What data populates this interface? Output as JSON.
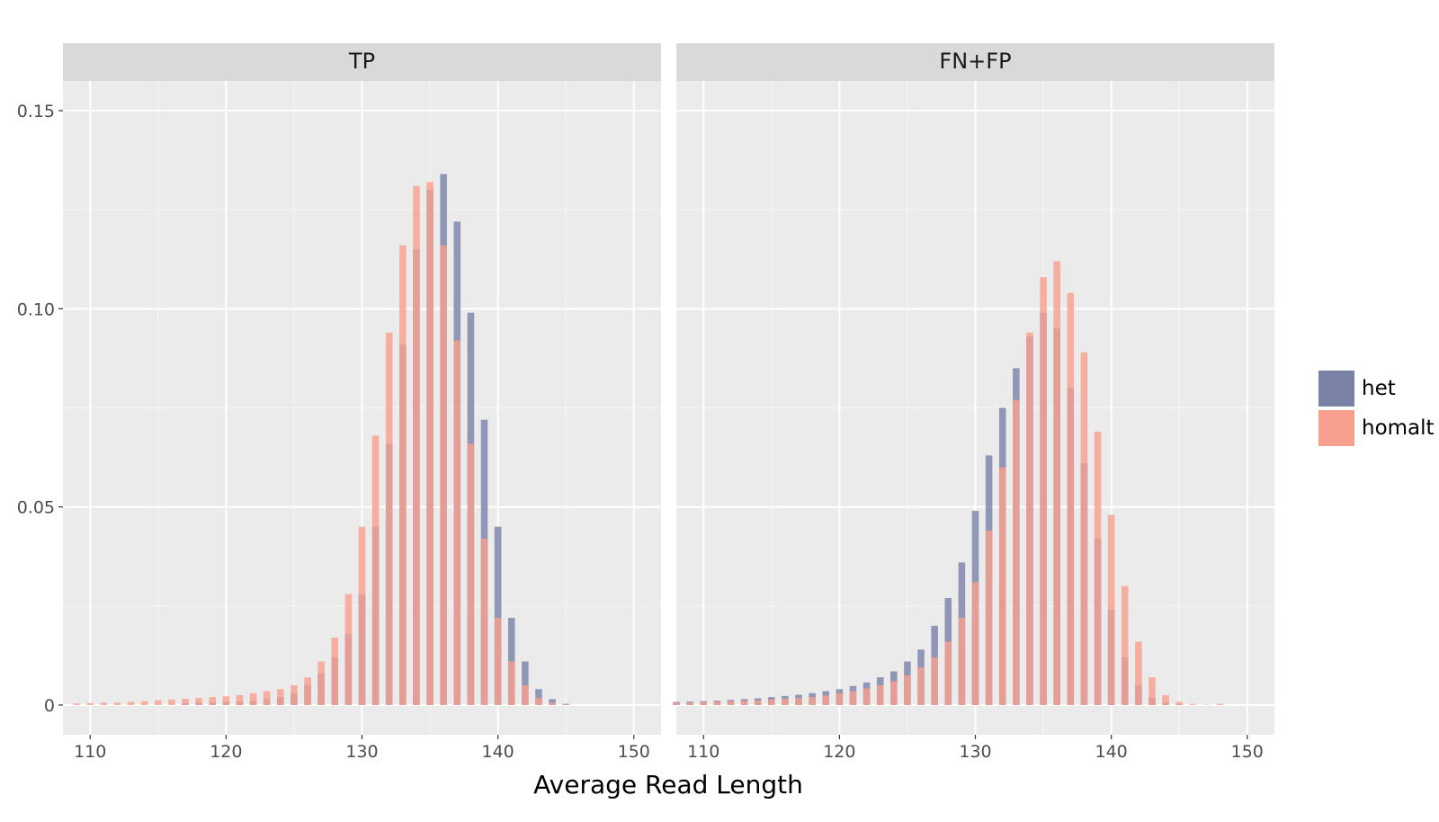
{
  "chart_data": {
    "type": "histogram",
    "xlabel": "Average Read Length",
    "ylabel": "",
    "xlim": [
      108,
      152
    ],
    "ylim": [
      -0.0075,
      0.1575
    ],
    "x_ticks": [
      110,
      120,
      130,
      140,
      150
    ],
    "x_tick_labels": [
      "110",
      "120",
      "130",
      "140",
      "150"
    ],
    "y_ticks": [
      0,
      0.05,
      0.1,
      0.15
    ],
    "y_tick_labels": [
      "0",
      "0.05",
      "0.10",
      "0.15"
    ],
    "grid": true,
    "legend_position": "right",
    "bin_width": 0.5,
    "panels": [
      {
        "name": "TP",
        "series": [
          {
            "name": "het",
            "color": "#7b82a8",
            "x": [
              117,
              118,
              119,
              120,
              121,
              122,
              123,
              124,
              125,
              126,
              127,
              128,
              129,
              130,
              131,
              132,
              133,
              134,
              135,
              136,
              137,
              138,
              139,
              140,
              141,
              142,
              143,
              144,
              145
            ],
            "values": [
              0.0005,
              0.0006,
              0.0007,
              0.0008,
              0.0009,
              0.001,
              0.0015,
              0.002,
              0.003,
              0.005,
              0.008,
              0.012,
              0.018,
              0.028,
              0.045,
              0.066,
              0.091,
              0.115,
              0.13,
              0.134,
              0.122,
              0.099,
              0.072,
              0.045,
              0.022,
              0.011,
              0.004,
              0.0015,
              0.0003
            ]
          },
          {
            "name": "homalt",
            "color": "#f8a08f",
            "x": [
              109,
              110,
              111,
              112,
              113,
              114,
              115,
              116,
              117,
              118,
              119,
              120,
              121,
              122,
              123,
              124,
              125,
              126,
              127,
              128,
              129,
              130,
              131,
              132,
              133,
              134,
              135,
              136,
              137,
              138,
              139,
              140,
              141,
              142,
              143,
              144,
              145
            ],
            "values": [
              0.0004,
              0.0005,
              0.0006,
              0.0006,
              0.0008,
              0.001,
              0.0012,
              0.0014,
              0.0016,
              0.0018,
              0.002,
              0.0022,
              0.0025,
              0.003,
              0.0035,
              0.004,
              0.005,
              0.007,
              0.011,
              0.017,
              0.028,
              0.045,
              0.068,
              0.094,
              0.116,
              0.131,
              0.132,
              0.116,
              0.092,
              0.066,
              0.042,
              0.022,
              0.011,
              0.005,
              0.0018,
              0.0006,
              0.0002
            ]
          }
        ]
      },
      {
        "name": "FN+FP",
        "series": [
          {
            "name": "het",
            "color": "#7b82a8",
            "x": [
              108,
              109,
              110,
              111,
              112,
              113,
              114,
              115,
              116,
              117,
              118,
              119,
              120,
              121,
              122,
              123,
              124,
              125,
              126,
              127,
              128,
              129,
              130,
              131,
              132,
              133,
              134,
              135,
              136,
              137,
              138,
              139,
              140,
              141,
              142,
              143,
              144,
              145
            ],
            "values": [
              0.0008,
              0.0009,
              0.001,
              0.0011,
              0.0013,
              0.0015,
              0.0017,
              0.002,
              0.0023,
              0.0026,
              0.003,
              0.0035,
              0.004,
              0.0048,
              0.0057,
              0.007,
              0.0085,
              0.011,
              0.014,
              0.02,
              0.027,
              0.036,
              0.049,
              0.063,
              0.075,
              0.085,
              0.093,
              0.099,
              0.095,
              0.08,
              0.061,
              0.042,
              0.024,
              0.012,
              0.005,
              0.0018,
              0.0006,
              0.0002
            ]
          },
          {
            "name": "homalt",
            "color": "#f8a08f",
            "x": [
              108,
              109,
              110,
              111,
              112,
              113,
              114,
              115,
              116,
              117,
              118,
              119,
              120,
              121,
              122,
              123,
              124,
              125,
              126,
              127,
              128,
              129,
              130,
              131,
              132,
              133,
              134,
              135,
              136,
              137,
              138,
              139,
              140,
              141,
              142,
              143,
              144,
              145,
              146,
              147,
              148
            ],
            "values": [
              0.0006,
              0.0007,
              0.0008,
              0.0009,
              0.001,
              0.0011,
              0.0012,
              0.0014,
              0.0016,
              0.0018,
              0.002,
              0.0024,
              0.003,
              0.0035,
              0.0042,
              0.005,
              0.006,
              0.0075,
              0.0095,
              0.012,
              0.016,
              0.022,
              0.031,
              0.044,
              0.06,
              0.077,
              0.094,
              0.108,
              0.112,
              0.104,
              0.089,
              0.069,
              0.048,
              0.03,
              0.016,
              0.007,
              0.0025,
              0.0008,
              0.0003,
              0.0001,
              0.0003
            ]
          }
        ]
      }
    ]
  },
  "legend": {
    "items": [
      {
        "label": "het",
        "color": "#7b82a8"
      },
      {
        "label": "homalt",
        "color": "#f8a08f"
      }
    ]
  },
  "colors": {
    "panel_background": "#ebebeb",
    "strip_background": "#d9d9d9",
    "grid_major": "#ffffff"
  }
}
